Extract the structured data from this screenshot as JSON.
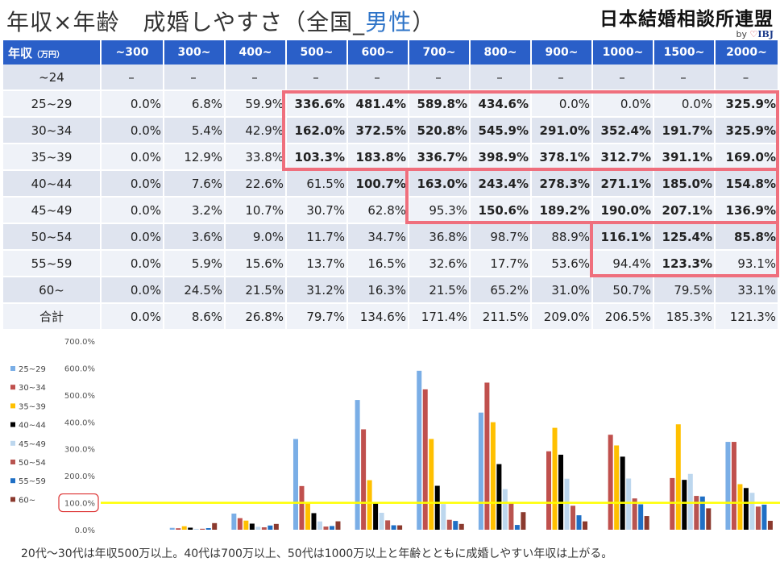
{
  "header": {
    "title_main": "年収×年齢　成婚しやすさ（全国_",
    "title_accent": "男性",
    "title_end": "）",
    "logo_text": "日本結婚相談所連盟",
    "logo_by": "by",
    "logo_brand": "IBJ"
  },
  "table": {
    "corner_label": "年収",
    "corner_unit": "（万円）",
    "columns": [
      "~300",
      "300~",
      "400~",
      "500~",
      "600~",
      "700~",
      "800~",
      "900~",
      "1000~",
      "1500~",
      "2000~"
    ],
    "rows": [
      {
        "age": "~24",
        "values": [
          "–",
          "–",
          "–",
          "–",
          "–",
          "–",
          "–",
          "–",
          "–",
          "–",
          "–"
        ]
      },
      {
        "age": "25~29",
        "values": [
          "0.0%",
          "6.8%",
          "59.9%",
          "336.6%",
          "481.4%",
          "589.8%",
          "434.6%",
          "0.0%",
          "0.0%",
          "0.0%",
          "325.9%"
        ]
      },
      {
        "age": "30~34",
        "values": [
          "0.0%",
          "5.4%",
          "42.9%",
          "162.0%",
          "372.5%",
          "520.8%",
          "545.9%",
          "291.0%",
          "352.4%",
          "191.7%",
          "325.9%"
        ]
      },
      {
        "age": "35~39",
        "values": [
          "0.0%",
          "12.9%",
          "33.8%",
          "103.3%",
          "183.8%",
          "336.7%",
          "398.9%",
          "378.1%",
          "312.7%",
          "391.1%",
          "169.0%"
        ]
      },
      {
        "age": "40~44",
        "values": [
          "0.0%",
          "7.6%",
          "22.6%",
          "61.5%",
          "100.7%",
          "163.0%",
          "243.4%",
          "278.3%",
          "271.1%",
          "185.0%",
          "154.8%"
        ]
      },
      {
        "age": "45~49",
        "values": [
          "0.0%",
          "3.2%",
          "10.7%",
          "30.7%",
          "62.8%",
          "95.3%",
          "150.6%",
          "189.2%",
          "190.0%",
          "207.1%",
          "136.9%"
        ]
      },
      {
        "age": "50~54",
        "values": [
          "0.0%",
          "3.6%",
          "9.0%",
          "11.7%",
          "34.7%",
          "36.8%",
          "98.7%",
          "88.9%",
          "116.1%",
          "125.4%",
          "85.8%"
        ]
      },
      {
        "age": "55~59",
        "values": [
          "0.0%",
          "5.9%",
          "15.6%",
          "13.7%",
          "16.5%",
          "32.6%",
          "17.7%",
          "53.6%",
          "94.4%",
          "123.3%",
          "93.1%"
        ]
      },
      {
        "age": "60~",
        "values": [
          "0.0%",
          "24.5%",
          "21.5%",
          "31.2%",
          "16.3%",
          "21.5%",
          "65.2%",
          "31.0%",
          "50.7%",
          "79.5%",
          "33.1%"
        ]
      },
      {
        "age": "合計",
        "values": [
          "0.0%",
          "8.6%",
          "26.8%",
          "79.7%",
          "134.6%",
          "171.4%",
          "211.5%",
          "209.0%",
          "206.5%",
          "185.3%",
          "121.3%"
        ]
      }
    ]
  },
  "chart_data": {
    "type": "bar",
    "categories": [
      "~300",
      "300~",
      "400~",
      "500~",
      "600~",
      "700~",
      "800~",
      "900~",
      "1000~",
      "1500~",
      "2000~"
    ],
    "series": [
      {
        "name": "25~29",
        "color": "#7aaee6",
        "values": [
          0,
          6.8,
          59.9,
          336.6,
          481.4,
          589.8,
          434.6,
          0,
          0,
          0,
          325.9
        ]
      },
      {
        "name": "30~34",
        "color": "#c0504d",
        "values": [
          0,
          5.4,
          42.9,
          162.0,
          372.5,
          520.8,
          545.9,
          291.0,
          352.4,
          191.7,
          325.9
        ]
      },
      {
        "name": "35~39",
        "color": "#ffc000",
        "values": [
          0,
          12.9,
          33.8,
          103.3,
          183.8,
          336.7,
          398.9,
          378.1,
          312.7,
          391.1,
          169.0
        ]
      },
      {
        "name": "40~44",
        "color": "#000000",
        "values": [
          0,
          7.6,
          22.6,
          61.5,
          100.7,
          163.0,
          243.4,
          278.3,
          271.1,
          185.0,
          154.8
        ]
      },
      {
        "name": "45~49",
        "color": "#bdd7ee",
        "values": [
          0,
          3.2,
          10.7,
          30.7,
          62.8,
          95.3,
          150.6,
          189.2,
          190.0,
          207.1,
          136.9
        ]
      },
      {
        "name": "50~54",
        "color": "#b85450",
        "values": [
          0,
          3.6,
          9.0,
          11.7,
          34.7,
          36.8,
          98.7,
          88.9,
          116.1,
          125.4,
          85.8
        ]
      },
      {
        "name": "55~59",
        "color": "#1f6fc5",
        "values": [
          0,
          5.9,
          15.6,
          13.7,
          16.5,
          32.6,
          17.7,
          53.6,
          94.4,
          123.3,
          93.1
        ]
      },
      {
        "name": "60~",
        "color": "#8b3a2e",
        "values": [
          0,
          24.5,
          21.5,
          31.2,
          16.3,
          21.5,
          65.2,
          31.0,
          50.7,
          79.5,
          33.1
        ]
      }
    ],
    "yticks": [
      "0.0%",
      "100.0%",
      "200.0%",
      "300.0%",
      "400.0%",
      "500.0%",
      "600.0%",
      "700.0%"
    ],
    "ylim": [
      0,
      700
    ],
    "reference_line": 100,
    "reference_color": "#ffff00",
    "legend_position": "left",
    "grid": false
  },
  "caption": "20代〜30代は年収500万以上。40代は700万以上、50代は1000万以上と年齢とともに成婚しやすい年収は上がる。"
}
